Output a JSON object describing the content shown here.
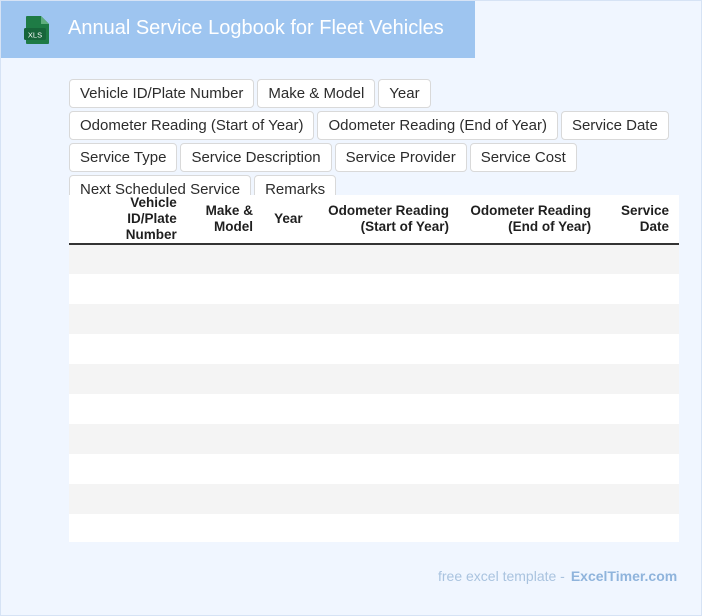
{
  "header": {
    "title": "Annual Service Logbook for Fleet Vehicles",
    "icon_label": "XLS"
  },
  "fields": [
    "Vehicle ID/Plate Number",
    "Make & Model",
    "Year",
    "Odometer Reading (Start of Year)",
    "Odometer Reading (End of Year)",
    "Service Date",
    "Service Type",
    "Service Description",
    "Service Provider",
    "Service Cost",
    "Next Scheduled Service",
    "Remarks"
  ],
  "table": {
    "columns": [
      "Vehicle ID/Plate Number",
      "Make & Model",
      "Year",
      "Odometer Reading (Start of Year)",
      "Odometer Reading (End of Year)",
      "Service Date"
    ],
    "row_count": 10
  },
  "footer": {
    "text": "free excel template -",
    "brand": "ExcelTimer.com"
  },
  "colors": {
    "header_bg": "#9ec5f0",
    "page_bg": "#f0f6ff",
    "row_stripe": "#f4f4f4",
    "xls_green": "#1e7b45"
  }
}
